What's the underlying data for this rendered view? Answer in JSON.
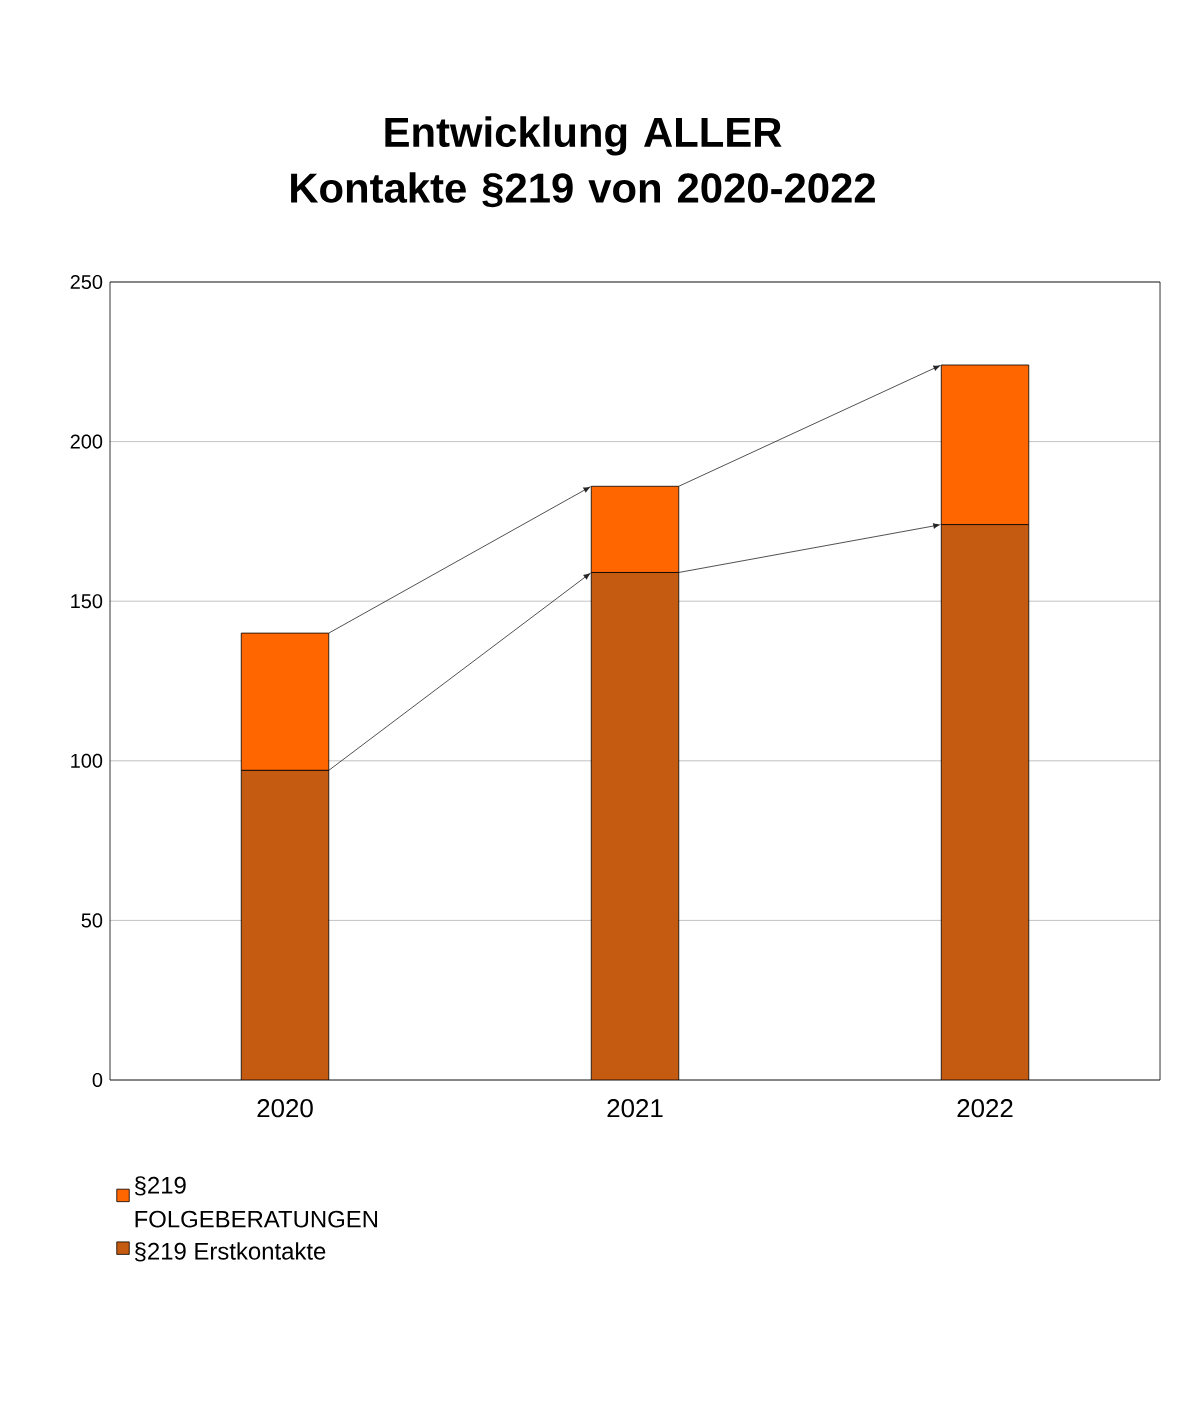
{
  "chart_data": {
    "type": "bar",
    "title": "Entwicklung ALLER Kontakte §219 von 2020-2022",
    "categories": [
      "2020",
      "2021",
      "2022"
    ],
    "stacked": true,
    "series": [
      {
        "name": "§219 Erstkontakte",
        "color": "#c55a11",
        "values": [
          97,
          159,
          174
        ]
      },
      {
        "name": "§219 FOLGEBERATUNGEN",
        "color": "#ff6600",
        "values": [
          43,
          27,
          50
        ]
      }
    ],
    "ylim": [
      0,
      250
    ],
    "yticks": [
      0,
      50,
      100,
      150,
      200,
      250
    ],
    "grid": "y",
    "legend": "bottom left"
  }
}
